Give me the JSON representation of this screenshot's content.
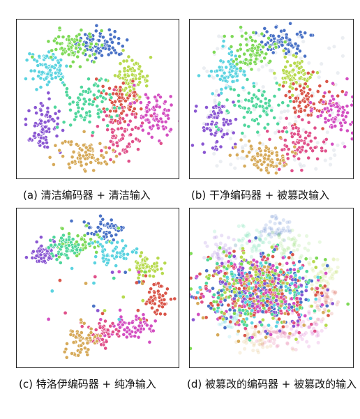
{
  "figure": {
    "panels": [
      {
        "id": "a",
        "caption": "(a) 清洁编码器 + 清洁输入"
      },
      {
        "id": "b",
        "caption": "(b) 干净编码器 + 被篡改输入"
      },
      {
        "id": "c",
        "caption": "(c) 特洛伊编码器 + 纯净输入"
      },
      {
        "id": "d",
        "caption": "(d) 被篡改的编码器 + 被篡改的输入"
      }
    ]
  },
  "colors": {
    "class_palette": [
      "#4a72c6",
      "#5bd3e0",
      "#7ed957",
      "#b7da4f",
      "#d9564a",
      "#d34fc1",
      "#e0508a",
      "#8a57d2",
      "#d6aa5a",
      "#4fd69c"
    ]
  },
  "chart_data": [
    {
      "type": "scatter",
      "panel": "a",
      "title": "",
      "xlabel": "",
      "ylabel": "",
      "note": "t-SNE embedding, 10 well-separated colored clusters",
      "classes": 10
    },
    {
      "type": "scatter",
      "panel": "b",
      "title": "",
      "xlabel": "",
      "ylabel": "",
      "note": "t-SNE embedding, 10 clusters similar to (a) with faint grey halo points",
      "classes": 10
    },
    {
      "type": "scatter",
      "panel": "c",
      "title": "",
      "xlabel": "",
      "ylabel": "",
      "note": "t-SNE embedding, clusters arranged along a curved arc",
      "classes": 10
    },
    {
      "type": "scatter",
      "panel": "d",
      "title": "",
      "xlabel": "",
      "ylabel": "",
      "note": "t-SNE embedding, classes collapsed into one mixed central cluster, faded clean clusters in background",
      "classes": 10
    }
  ]
}
